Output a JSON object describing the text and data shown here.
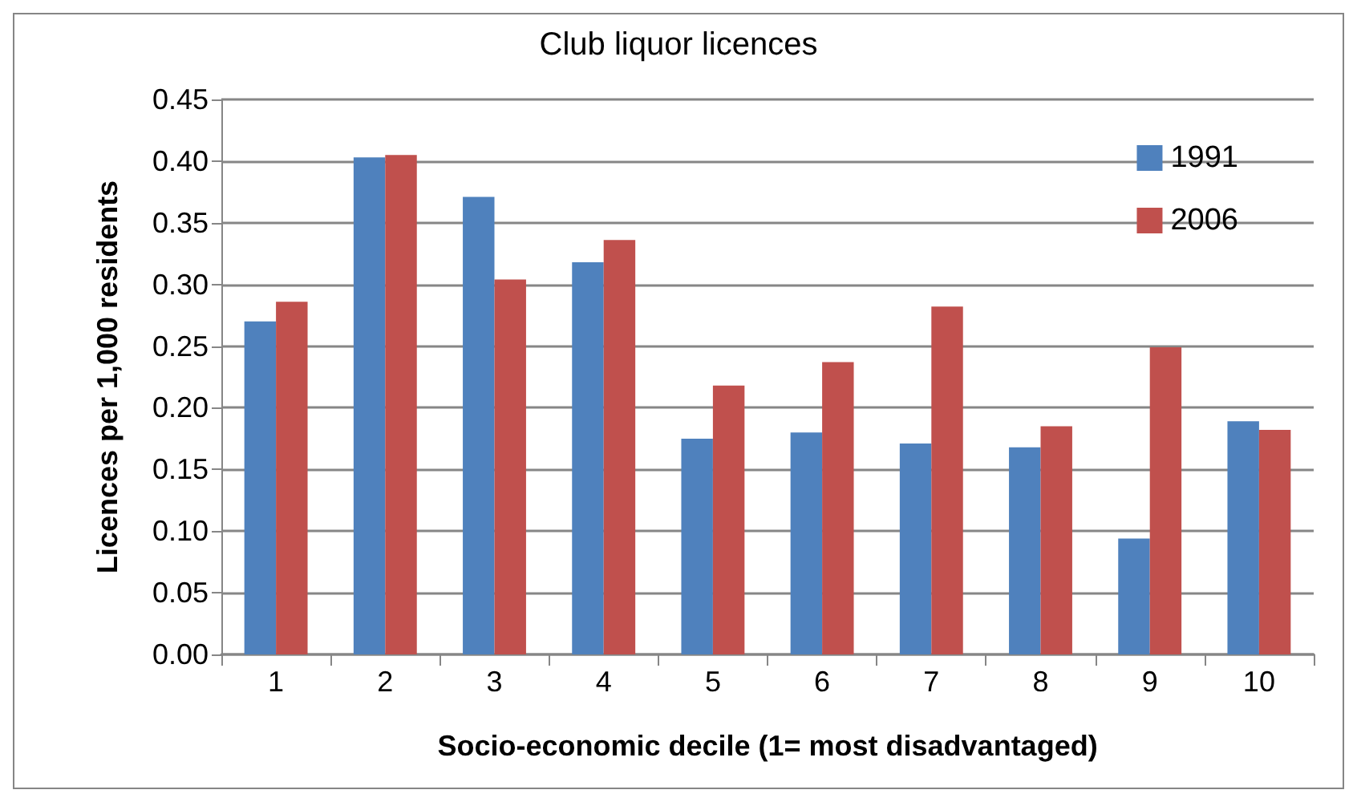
{
  "chart_data": {
    "type": "bar",
    "title": "Club liquor licences",
    "xlabel": "Socio-economic decile (1= most disadvantaged)",
    "ylabel": "Licences per 1,000 residents",
    "categories": [
      "1",
      "2",
      "3",
      "4",
      "5",
      "6",
      "7",
      "8",
      "9",
      "10"
    ],
    "series": [
      {
        "name": "1991",
        "color": "#4f81bd",
        "values": [
          0.27,
          0.403,
          0.371,
          0.318,
          0.175,
          0.18,
          0.171,
          0.168,
          0.094,
          0.189
        ]
      },
      {
        "name": "2006",
        "color": "#c0504d",
        "values": [
          0.286,
          0.405,
          0.304,
          0.336,
          0.218,
          0.237,
          0.282,
          0.185,
          0.249,
          0.182
        ]
      }
    ],
    "ylim": [
      0,
      0.45
    ],
    "yticks": [
      {
        "value": 0,
        "label": "0.00"
      },
      {
        "value": 0.05,
        "label": "0.05"
      },
      {
        "value": 0.1,
        "label": "0.10"
      },
      {
        "value": 0.15,
        "label": "0.15"
      },
      {
        "value": 0.2,
        "label": "0.20"
      },
      {
        "value": 0.25,
        "label": "0.25"
      },
      {
        "value": 0.3,
        "label": "0.30"
      },
      {
        "value": 0.35,
        "label": "0.35"
      },
      {
        "value": 0.4,
        "label": "0.40"
      },
      {
        "value": 0.45,
        "label": "0.45"
      }
    ],
    "grid": "y",
    "legend": "top right"
  }
}
